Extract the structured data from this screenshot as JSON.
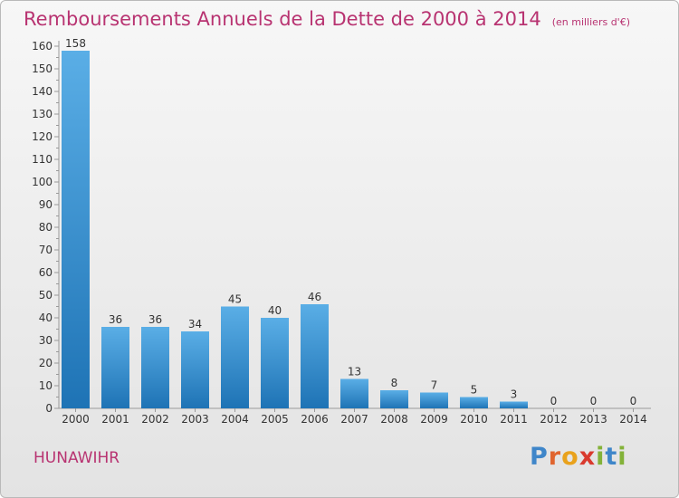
{
  "header": {
    "title": "Remboursements Annuels de la Dette de 2000 à 2014",
    "subtitle": "(en milliers d'€)"
  },
  "footer": {
    "commune": "HUNAWIHR",
    "logo_text": "Proxiti"
  },
  "colors": {
    "accent": "#b83371",
    "bar_light": "#5aaee6",
    "bar_dark": "#1e73b5",
    "logo_letters": [
      "#3f86c9",
      "#e0652f",
      "#e9a21c",
      "#d93a2e",
      "#83b238",
      "#3f86c9",
      "#83b238"
    ]
  },
  "chart_data": {
    "type": "bar",
    "title": "Remboursements Annuels de la Dette de 2000 à 2014",
    "categories": [
      "2000",
      "2001",
      "2002",
      "2003",
      "2004",
      "2005",
      "2006",
      "2007",
      "2008",
      "2009",
      "2010",
      "2011",
      "2012",
      "2013",
      "2014"
    ],
    "values": [
      158,
      36,
      36,
      34,
      45,
      40,
      46,
      13,
      8,
      7,
      5,
      3,
      0,
      0,
      0
    ],
    "value_labels": [
      "158",
      "36",
      "36",
      "34",
      "45",
      "40",
      "46",
      "13",
      "8",
      "7",
      "5",
      "3",
      "0",
      "0",
      "0"
    ],
    "yticks": [
      "0",
      "10",
      "20",
      "30",
      "40",
      "50",
      "60",
      "70",
      "80",
      "90",
      "100",
      "110",
      "120",
      "130",
      "140",
      "150",
      "160"
    ],
    "ylim": [
      0,
      160
    ],
    "xlabel": "",
    "ylabel": "",
    "grid": false
  }
}
